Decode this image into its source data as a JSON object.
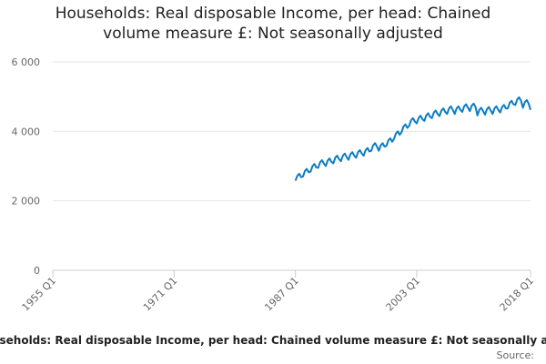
{
  "chart_data": {
    "type": "line",
    "title": "Households: Real disposable Income, per head: Chained volume measure £: Not seasonally adjusted",
    "caption": "Households: Real disposable Income, per head: Chained volume measure £: Not seasonally adjusted",
    "source": "Source:",
    "xlim": [
      1955,
      2018
    ],
    "xticks": [
      {
        "value": 1955,
        "label": "1955 Q1"
      },
      {
        "value": 1971,
        "label": "1971 Q1"
      },
      {
        "value": 1987,
        "label": "1987 Q1"
      },
      {
        "value": 2003,
        "label": "2003 Q1"
      },
      {
        "value": 2018,
        "label": "2018 Q1"
      }
    ],
    "ylim": [
      0,
      6000
    ],
    "yticks": [
      0,
      {
        "value": 2000,
        "label": "2 000"
      },
      {
        "value": 4000,
        "label": "4 000"
      },
      {
        "value": 6000,
        "label": "6 000"
      }
    ],
    "grid": true,
    "x": [
      1987,
      1987.25,
      1987.5,
      1987.75,
      1988,
      1988.25,
      1988.5,
      1988.75,
      1989,
      1989.25,
      1989.5,
      1989.75,
      1990,
      1990.25,
      1990.5,
      1990.75,
      1991,
      1991.25,
      1991.5,
      1991.75,
      1992,
      1992.25,
      1992.5,
      1992.75,
      1993,
      1993.25,
      1993.5,
      1993.75,
      1994,
      1994.25,
      1994.5,
      1994.75,
      1995,
      1995.25,
      1995.5,
      1995.75,
      1996,
      1996.25,
      1996.5,
      1996.75,
      1997,
      1997.25,
      1997.5,
      1997.75,
      1998,
      1998.25,
      1998.5,
      1998.75,
      1999,
      1999.25,
      1999.5,
      1999.75,
      2000,
      2000.25,
      2000.5,
      2000.75,
      2001,
      2001.25,
      2001.5,
      2001.75,
      2002,
      2002.25,
      2002.5,
      2002.75,
      2003,
      2003.25,
      2003.5,
      2003.75,
      2004,
      2004.25,
      2004.5,
      2004.75,
      2005,
      2005.25,
      2005.5,
      2005.75,
      2006,
      2006.25,
      2006.5,
      2006.75,
      2007,
      2007.25,
      2007.5,
      2007.75,
      2008,
      2008.25,
      2008.5,
      2008.75,
      2009,
      2009.25,
      2009.5,
      2009.75,
      2010,
      2010.25,
      2010.5,
      2010.75,
      2011,
      2011.25,
      2011.5,
      2011.75,
      2012,
      2012.25,
      2012.5,
      2012.75,
      2013,
      2013.25,
      2013.5,
      2013.75,
      2014,
      2014.25,
      2014.5,
      2014.75,
      2015,
      2015.25,
      2015.5,
      2015.75,
      2016,
      2016.25,
      2016.5,
      2016.75,
      2017,
      2017.25,
      2017.5,
      2017.75,
      2018
    ],
    "series": [
      {
        "color": "#0b7cc4",
        "values": [
          2580,
          2720,
          2780,
          2680,
          2700,
          2860,
          2920,
          2820,
          2840,
          3000,
          3060,
          2960,
          2950,
          3110,
          3170,
          3070,
          3000,
          3160,
          3220,
          3120,
          3080,
          3240,
          3300,
          3200,
          3140,
          3300,
          3360,
          3260,
          3180,
          3340,
          3400,
          3300,
          3240,
          3400,
          3460,
          3360,
          3300,
          3460,
          3520,
          3420,
          3440,
          3600,
          3660,
          3560,
          3440,
          3600,
          3660,
          3560,
          3580,
          3740,
          3800,
          3700,
          3780,
          3940,
          4000,
          3900,
          3980,
          4140,
          4200,
          4100,
          4160,
          4320,
          4380,
          4280,
          4230,
          4390,
          4450,
          4350,
          4300,
          4460,
          4520,
          4420,
          4380,
          4540,
          4600,
          4500,
          4440,
          4600,
          4660,
          4560,
          4500,
          4660,
          4720,
          4620,
          4500,
          4660,
          4720,
          4620,
          4560,
          4720,
          4780,
          4680,
          4580,
          4740,
          4800,
          4700,
          4460,
          4620,
          4680,
          4580,
          4480,
          4640,
          4700,
          4600,
          4500,
          4660,
          4720,
          4620,
          4540,
          4700,
          4760,
          4660,
          4660,
          4820,
          4880,
          4780,
          4760,
          4920,
          4980,
          4880,
          4680,
          4840,
          4900,
          4800,
          4620
        ]
      }
    ]
  }
}
